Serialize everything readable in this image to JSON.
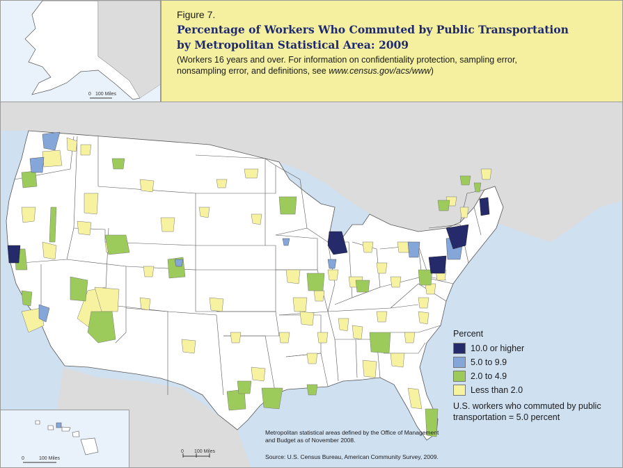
{
  "header": {
    "figure_label": "Figure 7.",
    "title_line1": "Percentage of Workers Who Commuted by Public Transportation",
    "title_line2": "by Metropolitan Statistical Area: 2009",
    "subtitle_prefix": "(Workers 16 years and over. For information on confidentiality protection, sampling error, nonsampling error, and definitions, see ",
    "subtitle_url": "www.census.gov/acs/www",
    "subtitle_suffix": ")"
  },
  "legend": {
    "title": "Percent",
    "items": [
      {
        "label": "10.0 or higher",
        "color": "#252a6b"
      },
      {
        "label": "5.0 to 9.9",
        "color": "#84a6d8"
      },
      {
        "label": "2.0 to 4.9",
        "color": "#9ccb5c"
      },
      {
        "label": "Less than 2.0",
        "color": "#f7f2a0"
      }
    ]
  },
  "notes": {
    "us_total": "U.S. workers who commuted by public transportation = 5.0 percent",
    "msa_definition": "Metropolitan statistical areas defined by the Office of Management and Budget as of November 2008.",
    "source": "Source: U.S. Census Bureau, American Community Survey, 2009."
  },
  "scale_bars": {
    "alaska": {
      "zero": "0",
      "label": "100 Miles"
    },
    "hawaii": {
      "zero": "0",
      "label": "100 Miles"
    },
    "main": {
      "zero": "0",
      "label": "100 Miles"
    }
  },
  "colors": {
    "land": "#ffffff",
    "water": "#cfe0f1",
    "neighbor_land": "#dcdcdc",
    "boundary": "#555555"
  }
}
